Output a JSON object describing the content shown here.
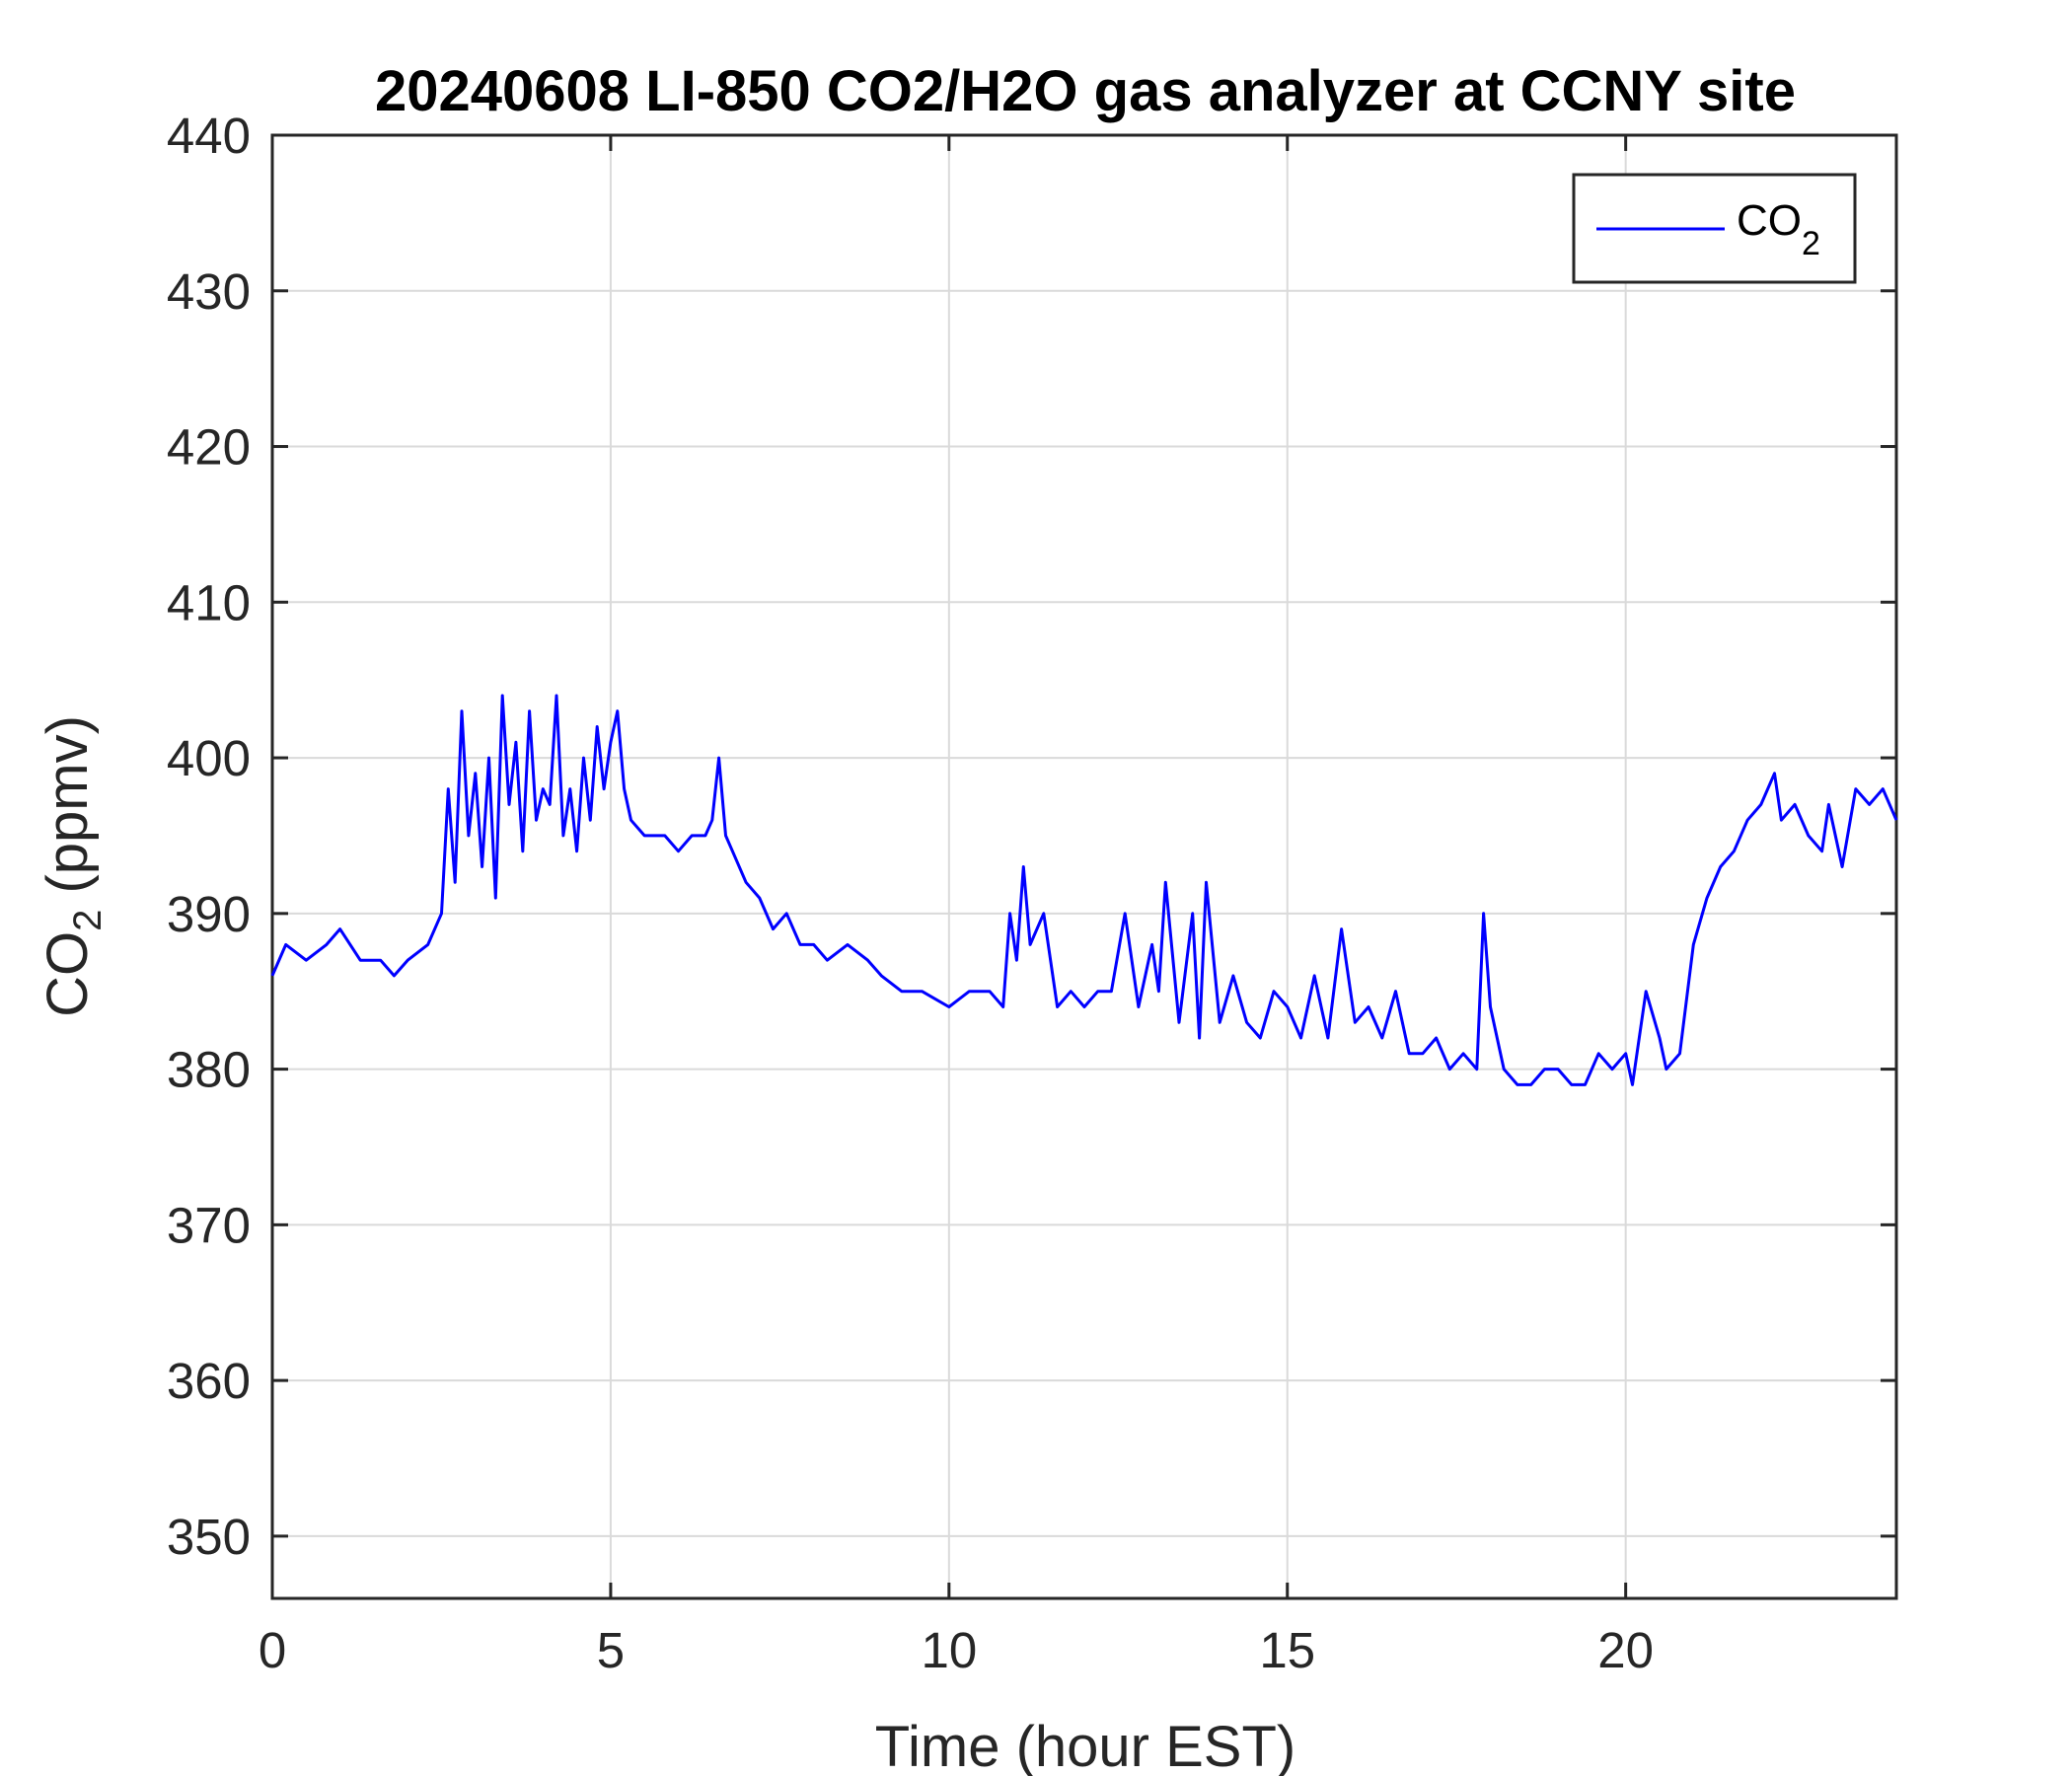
{
  "chart_data": {
    "type": "line",
    "title": "20240608 LI-850 CO2/H2O gas analyzer at CCNY site",
    "xlabel": "Time (hour EST)",
    "ylabel_main": "CO",
    "ylabel_sub": "2",
    "ylabel_rest": " (ppmv)",
    "xlim": [
      0,
      24
    ],
    "ylim": [
      346,
      440
    ],
    "xticks": [
      0,
      5,
      10,
      15,
      20
    ],
    "yticks": [
      350,
      360,
      370,
      380,
      390,
      400,
      410,
      420,
      430,
      440
    ],
    "grid": true,
    "legend_position": "top-right",
    "line_color": "#0000ff",
    "series": [
      {
        "name_main": "CO",
        "name_sub": "2",
        "x": [
          0.0,
          0.2,
          0.5,
          0.8,
          1.0,
          1.3,
          1.6,
          1.8,
          2.0,
          2.3,
          2.5,
          2.6,
          2.7,
          2.8,
          2.9,
          3.0,
          3.1,
          3.2,
          3.3,
          3.4,
          3.5,
          3.6,
          3.7,
          3.8,
          3.9,
          4.0,
          4.1,
          4.2,
          4.3,
          4.4,
          4.5,
          4.6,
          4.7,
          4.8,
          4.9,
          5.0,
          5.1,
          5.2,
          5.3,
          5.5,
          5.8,
          6.0,
          6.2,
          6.4,
          6.5,
          6.6,
          6.7,
          6.8,
          7.0,
          7.2,
          7.4,
          7.6,
          7.8,
          8.0,
          8.2,
          8.5,
          8.8,
          9.0,
          9.3,
          9.6,
          10.0,
          10.3,
          10.6,
          10.8,
          10.9,
          11.0,
          11.1,
          11.2,
          11.4,
          11.6,
          11.8,
          12.0,
          12.2,
          12.4,
          12.6,
          12.8,
          13.0,
          13.1,
          13.2,
          13.4,
          13.6,
          13.7,
          13.8,
          14.0,
          14.2,
          14.4,
          14.6,
          14.8,
          15.0,
          15.2,
          15.4,
          15.6,
          15.8,
          16.0,
          16.2,
          16.4,
          16.6,
          16.8,
          17.0,
          17.2,
          17.4,
          17.6,
          17.8,
          17.9,
          18.0,
          18.2,
          18.4,
          18.6,
          18.8,
          19.0,
          19.2,
          19.4,
          19.6,
          19.8,
          20.0,
          20.1,
          20.3,
          20.5,
          20.6,
          20.8,
          21.0,
          21.2,
          21.4,
          21.6,
          21.8,
          22.0,
          22.2,
          22.3,
          22.5,
          22.7,
          22.9,
          23.0,
          23.2,
          23.4,
          23.6,
          23.8,
          24.0
        ],
        "y": [
          386,
          388,
          387,
          388,
          389,
          387,
          387,
          386,
          387,
          388,
          390,
          398,
          392,
          403,
          395,
          399,
          393,
          400,
          391,
          404,
          397,
          401,
          394,
          403,
          396,
          398,
          397,
          404,
          395,
          398,
          394,
          400,
          396,
          402,
          398,
          401,
          403,
          398,
          396,
          395,
          395,
          394,
          395,
          395,
          396,
          400,
          395,
          394,
          392,
          391,
          389,
          390,
          388,
          388,
          387,
          388,
          387,
          386,
          385,
          385,
          384,
          385,
          385,
          384,
          390,
          387,
          393,
          388,
          390,
          384,
          385,
          384,
          385,
          385,
          390,
          384,
          388,
          385,
          392,
          383,
          390,
          382,
          392,
          383,
          386,
          383,
          382,
          385,
          384,
          382,
          386,
          382,
          389,
          383,
          384,
          382,
          385,
          381,
          381,
          382,
          380,
          381,
          380,
          390,
          384,
          380,
          379,
          379,
          380,
          380,
          379,
          379,
          381,
          380,
          381,
          379,
          385,
          382,
          380,
          381,
          388,
          391,
          393,
          394,
          396,
          397,
          399,
          396,
          397,
          395,
          394,
          397,
          393,
          398,
          397,
          398,
          396
        ]
      }
    ]
  }
}
